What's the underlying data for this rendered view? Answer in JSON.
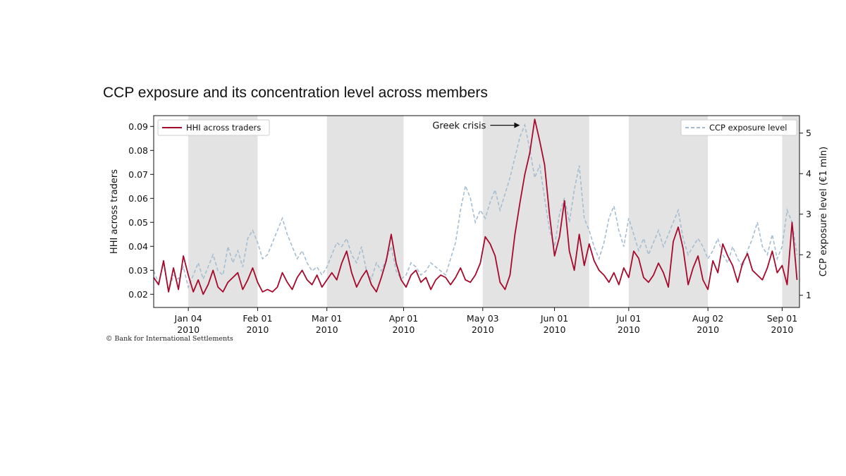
{
  "page": {
    "title": "CCP exposure and its concentration level across members",
    "footer": "© Bank for International Settlements"
  },
  "chart_data": {
    "type": "line",
    "title": "CCP exposure and its concentration level across members",
    "x_ticks": [
      {
        "line1": "Jan 04",
        "line2": "2010",
        "day": 3
      },
      {
        "line1": "Feb 01",
        "line2": "2010",
        "day": 31
      },
      {
        "line1": "Mar 01",
        "line2": "2010",
        "day": 59
      },
      {
        "line1": "Apr 01",
        "line2": "2010",
        "day": 90
      },
      {
        "line1": "May 03",
        "line2": "2010",
        "day": 122
      },
      {
        "line1": "Jun 01",
        "line2": "2010",
        "day": 151
      },
      {
        "line1": "Jul 01",
        "line2": "2010",
        "day": 181
      },
      {
        "line1": "Aug 02",
        "line2": "2010",
        "day": 213
      },
      {
        "line1": "Sep 01",
        "line2": "2010",
        "day": 243
      }
    ],
    "x_range_days": [
      -11,
      250
    ],
    "shaded_bands_days": [
      [
        3,
        31
      ],
      [
        59,
        90
      ],
      [
        122,
        165
      ],
      [
        181,
        213
      ],
      [
        243,
        250
      ]
    ],
    "left_axis": {
      "label": "HHI across traders",
      "range": [
        0.0145,
        0.0945
      ],
      "ticks": [
        "0.02",
        "0.03",
        "0.04",
        "0.05",
        "0.06",
        "0.07",
        "0.08",
        "0.09"
      ]
    },
    "right_axis": {
      "label": "CCP exposure level (€1 mln)",
      "range": [
        0.7,
        5.43
      ],
      "ticks": [
        "1",
        "2",
        "3",
        "4",
        "5"
      ]
    },
    "annotation": {
      "text": "Greek crisis",
      "day": 137,
      "value": 0.0905
    },
    "series": [
      {
        "name": "HHI across traders",
        "axis": "left",
        "color": "#a50a2c",
        "style": "solid",
        "points": [
          [
            -11,
            0.027
          ],
          [
            -9,
            0.024
          ],
          [
            -7,
            0.034
          ],
          [
            -5,
            0.021
          ],
          [
            -3,
            0.031
          ],
          [
            -1,
            0.022
          ],
          [
            1,
            0.036
          ],
          [
            3,
            0.028
          ],
          [
            5,
            0.021
          ],
          [
            7,
            0.026
          ],
          [
            9,
            0.02
          ],
          [
            11,
            0.024
          ],
          [
            13,
            0.03
          ],
          [
            15,
            0.023
          ],
          [
            17,
            0.021
          ],
          [
            19,
            0.025
          ],
          [
            21,
            0.027
          ],
          [
            23,
            0.029
          ],
          [
            25,
            0.022
          ],
          [
            27,
            0.026
          ],
          [
            29,
            0.031
          ],
          [
            31,
            0.025
          ],
          [
            33,
            0.021
          ],
          [
            35,
            0.022
          ],
          [
            37,
            0.021
          ],
          [
            39,
            0.023
          ],
          [
            41,
            0.029
          ],
          [
            43,
            0.025
          ],
          [
            45,
            0.022
          ],
          [
            47,
            0.027
          ],
          [
            49,
            0.03
          ],
          [
            51,
            0.026
          ],
          [
            53,
            0.024
          ],
          [
            55,
            0.028
          ],
          [
            57,
            0.023
          ],
          [
            59,
            0.026
          ],
          [
            61,
            0.029
          ],
          [
            63,
            0.026
          ],
          [
            65,
            0.033
          ],
          [
            67,
            0.038
          ],
          [
            69,
            0.029
          ],
          [
            71,
            0.023
          ],
          [
            73,
            0.027
          ],
          [
            75,
            0.03
          ],
          [
            77,
            0.024
          ],
          [
            79,
            0.021
          ],
          [
            81,
            0.027
          ],
          [
            83,
            0.034
          ],
          [
            85,
            0.045
          ],
          [
            87,
            0.033
          ],
          [
            89,
            0.026
          ],
          [
            91,
            0.023
          ],
          [
            93,
            0.028
          ],
          [
            95,
            0.03
          ],
          [
            97,
            0.025
          ],
          [
            99,
            0.027
          ],
          [
            101,
            0.022
          ],
          [
            103,
            0.026
          ],
          [
            105,
            0.028
          ],
          [
            107,
            0.027
          ],
          [
            109,
            0.024
          ],
          [
            111,
            0.027
          ],
          [
            113,
            0.031
          ],
          [
            115,
            0.026
          ],
          [
            117,
            0.025
          ],
          [
            119,
            0.028
          ],
          [
            121,
            0.033
          ],
          [
            123,
            0.044
          ],
          [
            125,
            0.041
          ],
          [
            127,
            0.036
          ],
          [
            129,
            0.025
          ],
          [
            131,
            0.022
          ],
          [
            133,
            0.028
          ],
          [
            135,
            0.045
          ],
          [
            137,
            0.058
          ],
          [
            139,
            0.07
          ],
          [
            141,
            0.079
          ],
          [
            143,
            0.093
          ],
          [
            145,
            0.084
          ],
          [
            147,
            0.074
          ],
          [
            149,
            0.053
          ],
          [
            151,
            0.036
          ],
          [
            153,
            0.044
          ],
          [
            155,
            0.059
          ],
          [
            157,
            0.038
          ],
          [
            159,
            0.03
          ],
          [
            161,
            0.045
          ],
          [
            163,
            0.032
          ],
          [
            165,
            0.041
          ],
          [
            167,
            0.034
          ],
          [
            169,
            0.03
          ],
          [
            171,
            0.028
          ],
          [
            173,
            0.025
          ],
          [
            175,
            0.029
          ],
          [
            177,
            0.024
          ],
          [
            179,
            0.031
          ],
          [
            181,
            0.027
          ],
          [
            183,
            0.038
          ],
          [
            185,
            0.035
          ],
          [
            187,
            0.027
          ],
          [
            189,
            0.025
          ],
          [
            191,
            0.028
          ],
          [
            193,
            0.033
          ],
          [
            195,
            0.029
          ],
          [
            197,
            0.023
          ],
          [
            199,
            0.042
          ],
          [
            201,
            0.048
          ],
          [
            203,
            0.039
          ],
          [
            205,
            0.024
          ],
          [
            207,
            0.031
          ],
          [
            209,
            0.036
          ],
          [
            211,
            0.026
          ],
          [
            213,
            0.022
          ],
          [
            215,
            0.034
          ],
          [
            217,
            0.029
          ],
          [
            219,
            0.041
          ],
          [
            221,
            0.036
          ],
          [
            223,
            0.032
          ],
          [
            225,
            0.025
          ],
          [
            227,
            0.033
          ],
          [
            229,
            0.037
          ],
          [
            231,
            0.03
          ],
          [
            233,
            0.028
          ],
          [
            235,
            0.026
          ],
          [
            237,
            0.031
          ],
          [
            239,
            0.038
          ],
          [
            241,
            0.029
          ],
          [
            243,
            0.032
          ],
          [
            245,
            0.024
          ],
          [
            247,
            0.05
          ],
          [
            249,
            0.026
          ]
        ]
      },
      {
        "name": "CCP exposure level",
        "axis": "right",
        "color": "#a6bdd1",
        "style": "dashed",
        "points": [
          [
            -11,
            1.6
          ],
          [
            -9,
            1.3
          ],
          [
            -7,
            1.8
          ],
          [
            -5,
            1.1
          ],
          [
            -3,
            1.5
          ],
          [
            -1,
            1.4
          ],
          [
            1,
            1.7
          ],
          [
            3,
            1.2
          ],
          [
            5,
            1.5
          ],
          [
            7,
            1.8
          ],
          [
            9,
            1.4
          ],
          [
            11,
            1.7
          ],
          [
            13,
            2.0
          ],
          [
            15,
            1.6
          ],
          [
            17,
            1.5
          ],
          [
            19,
            2.2
          ],
          [
            21,
            1.8
          ],
          [
            23,
            2.1
          ],
          [
            25,
            1.7
          ],
          [
            27,
            2.4
          ],
          [
            29,
            2.6
          ],
          [
            31,
            2.3
          ],
          [
            33,
            1.9
          ],
          [
            35,
            2.0
          ],
          [
            37,
            2.3
          ],
          [
            39,
            2.6
          ],
          [
            41,
            2.9
          ],
          [
            43,
            2.5
          ],
          [
            45,
            2.2
          ],
          [
            47,
            1.9
          ],
          [
            49,
            2.1
          ],
          [
            51,
            1.8
          ],
          [
            53,
            1.6
          ],
          [
            55,
            1.7
          ],
          [
            57,
            1.5
          ],
          [
            59,
            1.7
          ],
          [
            61,
            2.0
          ],
          [
            63,
            2.3
          ],
          [
            65,
            2.2
          ],
          [
            67,
            2.4
          ],
          [
            69,
            2.0
          ],
          [
            71,
            1.8
          ],
          [
            73,
            2.2
          ],
          [
            75,
            1.6
          ],
          [
            77,
            1.4
          ],
          [
            79,
            1.8
          ],
          [
            81,
            1.6
          ],
          [
            83,
            1.9
          ],
          [
            85,
            2.2
          ],
          [
            87,
            1.6
          ],
          [
            89,
            1.4
          ],
          [
            91,
            1.5
          ],
          [
            93,
            1.8
          ],
          [
            95,
            1.7
          ],
          [
            97,
            1.5
          ],
          [
            99,
            1.6
          ],
          [
            101,
            1.8
          ],
          [
            103,
            1.7
          ],
          [
            105,
            1.6
          ],
          [
            107,
            1.5
          ],
          [
            109,
            1.9
          ],
          [
            111,
            2.3
          ],
          [
            113,
            3.1
          ],
          [
            115,
            3.7
          ],
          [
            117,
            3.4
          ],
          [
            119,
            2.8
          ],
          [
            121,
            3.1
          ],
          [
            123,
            2.9
          ],
          [
            125,
            3.3
          ],
          [
            127,
            3.6
          ],
          [
            129,
            3.1
          ],
          [
            131,
            3.5
          ],
          [
            133,
            3.9
          ],
          [
            135,
            4.4
          ],
          [
            137,
            4.9
          ],
          [
            139,
            5.2
          ],
          [
            141,
            4.6
          ],
          [
            143,
            3.9
          ],
          [
            145,
            4.2
          ],
          [
            147,
            3.4
          ],
          [
            149,
            2.6
          ],
          [
            151,
            2.2
          ],
          [
            153,
            3.0
          ],
          [
            155,
            3.4
          ],
          [
            157,
            2.8
          ],
          [
            159,
            3.6
          ],
          [
            161,
            4.2
          ],
          [
            163,
            2.9
          ],
          [
            165,
            2.6
          ],
          [
            167,
            2.2
          ],
          [
            169,
            1.9
          ],
          [
            171,
            2.3
          ],
          [
            173,
            2.9
          ],
          [
            175,
            3.2
          ],
          [
            177,
            2.6
          ],
          [
            179,
            2.2
          ],
          [
            181,
            2.9
          ],
          [
            183,
            2.5
          ],
          [
            185,
            2.1
          ],
          [
            187,
            2.4
          ],
          [
            189,
            2.0
          ],
          [
            191,
            2.3
          ],
          [
            193,
            2.6
          ],
          [
            195,
            2.2
          ],
          [
            197,
            2.5
          ],
          [
            199,
            2.8
          ],
          [
            201,
            3.1
          ],
          [
            203,
            2.4
          ],
          [
            205,
            2.0
          ],
          [
            207,
            2.2
          ],
          [
            209,
            2.4
          ],
          [
            211,
            2.2
          ],
          [
            213,
            1.9
          ],
          [
            215,
            2.1
          ],
          [
            217,
            2.4
          ],
          [
            219,
            2.0
          ],
          [
            221,
            1.8
          ],
          [
            223,
            2.2
          ],
          [
            225,
            1.9
          ],
          [
            227,
            1.7
          ],
          [
            229,
            2.1
          ],
          [
            231,
            2.4
          ],
          [
            233,
            2.8
          ],
          [
            235,
            2.2
          ],
          [
            237,
            2.0
          ],
          [
            239,
            2.5
          ],
          [
            241,
            1.9
          ],
          [
            243,
            2.2
          ],
          [
            245,
            3.1
          ],
          [
            247,
            2.8
          ],
          [
            249,
            2.0
          ]
        ]
      }
    ]
  }
}
